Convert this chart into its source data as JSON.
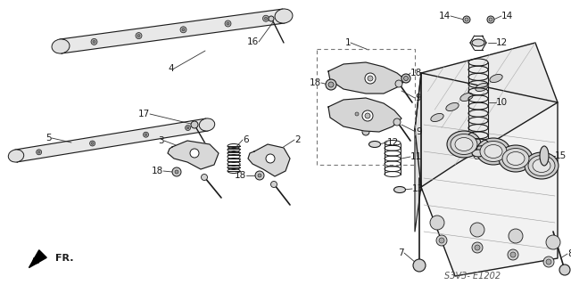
{
  "bg_color": "#ffffff",
  "fig_width": 6.4,
  "fig_height": 3.2,
  "dpi": 100,
  "watermark": "S3V3- E1202",
  "fr_label": "FR.",
  "lc": "#1a1a1a",
  "lw": 0.7
}
